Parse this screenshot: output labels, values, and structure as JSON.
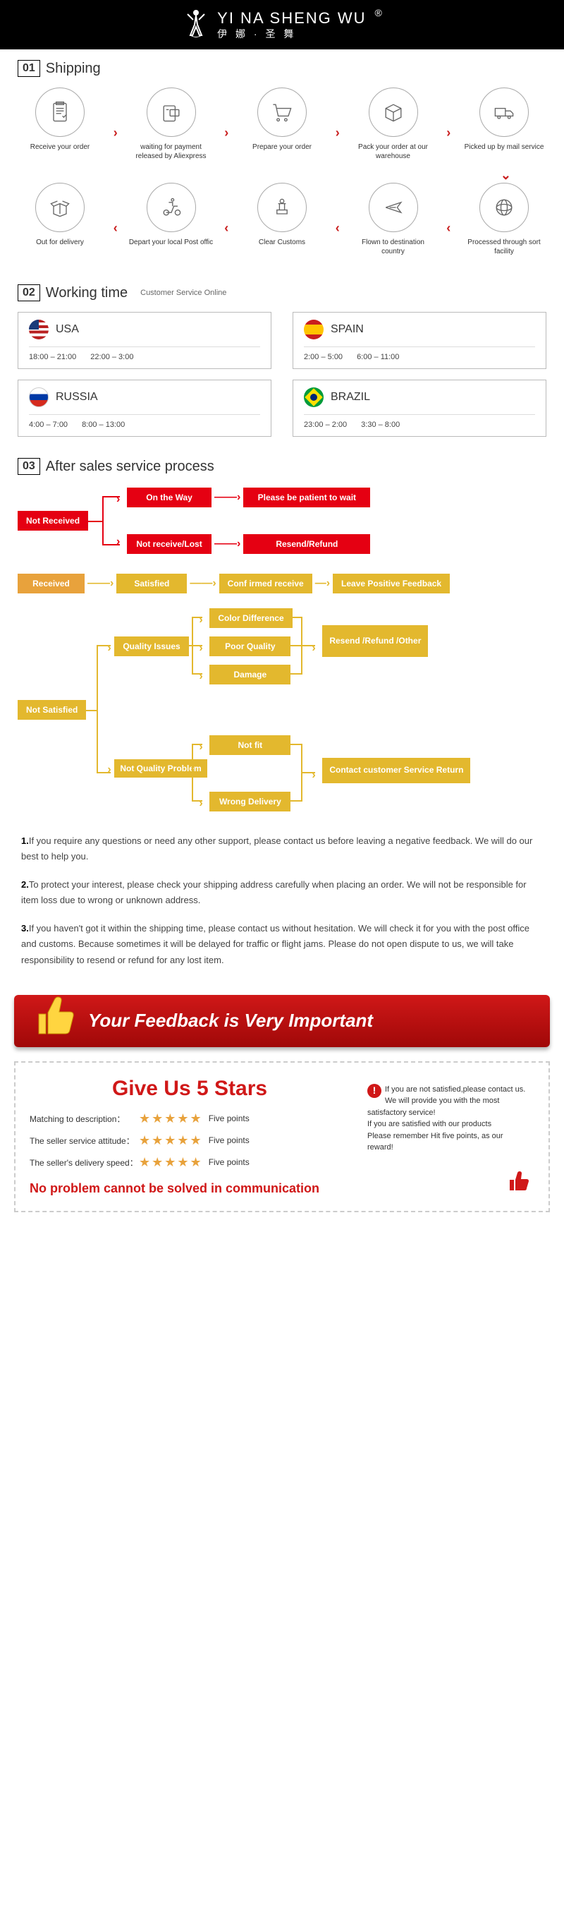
{
  "brand": {
    "en": "YI NA SHENG WU",
    "cn": "伊 娜 · 圣 舞"
  },
  "colors": {
    "red": "#e50012",
    "orange": "#e8a23c",
    "yellow": "#e3b82e",
    "darkred": "#a00808"
  },
  "sections": {
    "shipping": {
      "num": "01",
      "title": "Shipping"
    },
    "working": {
      "num": "02",
      "title": "Working time",
      "sub": "Customer Service Online"
    },
    "aftersales": {
      "num": "03",
      "title": "After sales service process"
    }
  },
  "shipping_steps_row1": [
    {
      "text": "Receive your order"
    },
    {
      "text": "waiting for payment released by Aliexpress"
    },
    {
      "text": "Prepare your order"
    },
    {
      "text": "Pack your order at our warehouse"
    },
    {
      "text": "Picked up by mail service"
    }
  ],
  "shipping_steps_row2": [
    {
      "text": "Out for delivery"
    },
    {
      "text": "Depart your local Post offic"
    },
    {
      "text": "Clear Customs"
    },
    {
      "text": "Flown to destination country"
    },
    {
      "text": "Processed through sort facility"
    }
  ],
  "countries": [
    {
      "name": "USA",
      "flag": "usa",
      "t1": "18:00 – 21:00",
      "t2": "22:00 – 3:00"
    },
    {
      "name": "SPAIN",
      "flag": "spain",
      "t1": "2:00 – 5:00",
      "t2": "6:00 – 11:00"
    },
    {
      "name": "RUSSIA",
      "flag": "russia",
      "t1": "4:00 – 7:00",
      "t2": "8:00 – 13:00"
    },
    {
      "name": "BRAZIL",
      "flag": "brazil",
      "t1": "23:00 – 2:00",
      "t2": "3:30 – 8:00"
    }
  ],
  "flow": {
    "not_received": "Not Received",
    "on_way": "On the Way",
    "wait": "Please be patient to wait",
    "lost": "Not receive/Lost",
    "resend_refund": "Resend/Refund",
    "received": "Received",
    "satisfied": "Satisfied",
    "conf": "Conf irmed receive",
    "feedback": "Leave Positive Feedback",
    "not_satisfied": "Not Satisfied",
    "quality": "Quality Issues",
    "color_diff": "Color Difference",
    "poor": "Poor Quality",
    "damage": "Damage",
    "resend_other": "Resend /Refund /Other",
    "not_quality": "Not Quality Problem",
    "not_fit": "Not fit",
    "wrong": "Wrong Delivery",
    "contact": "Contact customer Service Return"
  },
  "notes": [
    "If you require any questions or need any other support, please contact us before leaving a negative feedback. We will do our best to help you.",
    "To protect your interest, please check your shipping address carefully when placing an order. We will not be responsible for item loss due to wrong or unknown address.",
    "If you haven't got it within the shipping time, please contact us without hesitation. We will check it for you with the post office and customs. Because sometimes it will be delayed for traffic or flight jams. Please do not open dispute to us, we will take responsibility to resend or refund for any lost item."
  ],
  "feedback_banner": "Your Feedback is Very Important",
  "stars": {
    "title": "Give Us 5 Stars",
    "rows": [
      {
        "label": "Matching to description：",
        "points": "Five points"
      },
      {
        "label": "The seller service attitude：",
        "points": "Five points"
      },
      {
        "label": "The seller's delivery speed：",
        "points": "Five points"
      }
    ],
    "bottom": "No problem cannot be solved in communication",
    "right": "If you are not satisfied,please contact us. We will provide you with the most satisfactory service!\nIf you are satisfied with our products\nPlease remember Hit five points, as our reward!"
  }
}
